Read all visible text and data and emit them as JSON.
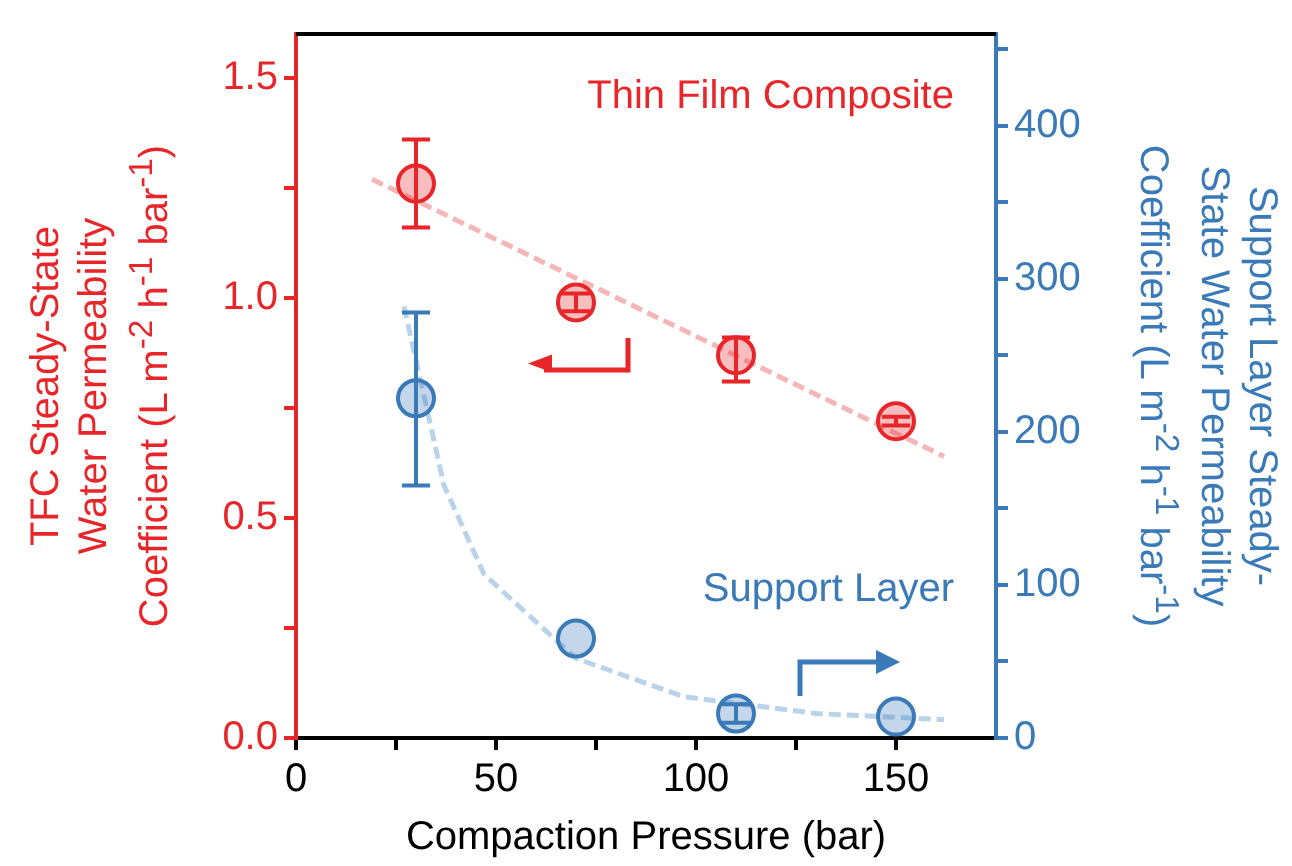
{
  "chart_data": {
    "type": "scatter",
    "xlabel": "Compaction Pressure (bar)",
    "ylabel": "TFC Steady-State\nWater Permeability\nCoefficient (L m$^{-2}$ h$^{-1}$ bar$^{-1}$)",
    "y2label": "Support Layer Steady-\nState Water Permeability\nCoefficient (L m$^{-2}$ h$^{-1}$ bar$^{-1}$)",
    "xlim": [
      0,
      175
    ],
    "xticks": [
      0,
      {
        "value": 25,
        "label": null
      },
      50,
      {
        "value": 75,
        "label": null
      },
      100,
      {
        "value": 125,
        "label": null
      },
      150
    ],
    "ylim": [
      0,
      1.6
    ],
    "yticks": [
      {
        "value": 0,
        "label": "0.0"
      },
      {
        "value": 0.25,
        "label": null
      },
      {
        "value": 0.5,
        "label": "0.5"
      },
      {
        "value": 0.75,
        "label": null
      },
      {
        "value": 1,
        "label": "1.0"
      },
      {
        "value": 1.25,
        "label": null
      },
      {
        "value": 1.5,
        "label": "1.5"
      }
    ],
    "y2lim": [
      0,
      460
    ],
    "y2ticks": [
      0,
      {
        "value": 50,
        "label": null
      },
      100,
      {
        "value": 150,
        "label": null
      },
      200,
      {
        "value": 250,
        "label": null
      },
      300,
      {
        "value": 350,
        "label": null
      },
      400,
      {
        "value": 450,
        "label": null
      }
    ],
    "grid": false,
    "legend": false,
    "marker": "circle",
    "series": [
      {
        "name": "Thin Film Composite",
        "type": "scatter",
        "color": "#e8262a",
        "x": [
          30,
          70,
          110,
          150
        ],
        "values": [
          1.26,
          0.99,
          0.87,
          0.72
        ],
        "errors": [
          [
            1.16,
            1.36
          ],
          0.02,
          [
            0.81,
            0.91
          ],
          0.01
        ]
      },
      {
        "type": "line",
        "color": "#f4b6b6",
        "x": [
          19,
          162
        ],
        "values": [
          1.27,
          0.64
        ],
        "marker": "none",
        "line_style": "dashed"
      },
      {
        "name": "Support Layer",
        "type": "scatter",
        "axis": "y2",
        "color": "#3a7ab8",
        "x": [
          30,
          70,
          110,
          150
        ],
        "values": [
          222,
          65,
          16,
          14
        ],
        "errors": [
          [
            165,
            278
          ],
          null,
          6,
          null
        ]
      },
      {
        "type": "line",
        "axis": "y2",
        "color": "#b8d3ea",
        "x": [
          27,
          37,
          47,
          70,
          97,
          130,
          162
        ],
        "values": [
          282,
          165,
          107,
          52,
          27,
          16,
          12
        ],
        "marker": "none",
        "line_style": "dashed"
      }
    ]
  }
}
